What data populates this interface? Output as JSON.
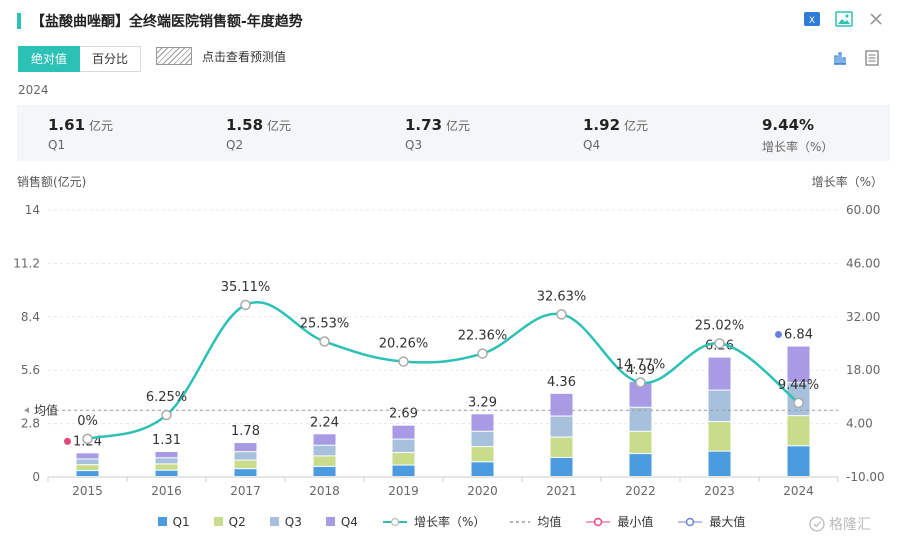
{
  "title": "【盐酸曲唑酮】全终端医院销售额-年度趋势",
  "toggle": {
    "absolute": "绝对值",
    "percent": "百分比"
  },
  "forecast_label": "点击查看预测值",
  "year": "2024",
  "summary": [
    {
      "value": "1.61",
      "unit": "亿元",
      "label": "Q1"
    },
    {
      "value": "1.58",
      "unit": "亿元",
      "label": "Q2"
    },
    {
      "value": "1.73",
      "unit": "亿元",
      "label": "Q3"
    },
    {
      "value": "1.92",
      "unit": "亿元",
      "label": "Q4"
    },
    {
      "value": "9.44%",
      "unit": "",
      "label": "增长率（%）"
    }
  ],
  "watermark": "格隆汇",
  "colors": {
    "accent": "#2cc1b5",
    "q1": "#4a9be0",
    "q2": "#c9dc8c",
    "q3": "#a7c1dc",
    "q4": "#a99ae6",
    "growth": "#2cc1b5",
    "min": "#e8457c",
    "max": "#6a7fe0"
  },
  "chart_data": {
    "type": "bar",
    "stacked": true,
    "categories": [
      "2015",
      "2016",
      "2017",
      "2018",
      "2019",
      "2020",
      "2021",
      "2022",
      "2023",
      "2024"
    ],
    "series": [
      {
        "name": "Q1",
        "values": [
          0.31,
          0.33,
          0.41,
          0.53,
          0.6,
          0.77,
          1.0,
          1.2,
          1.33,
          1.61
        ]
      },
      {
        "name": "Q2",
        "values": [
          0.31,
          0.33,
          0.45,
          0.55,
          0.66,
          0.8,
          1.07,
          1.17,
          1.55,
          1.58
        ]
      },
      {
        "name": "Q3",
        "values": [
          0.3,
          0.32,
          0.44,
          0.56,
          0.7,
          0.8,
          1.1,
          1.26,
          1.65,
          1.73
        ]
      },
      {
        "name": "Q4",
        "values": [
          0.32,
          0.33,
          0.48,
          0.6,
          0.73,
          0.92,
          1.19,
          1.36,
          1.73,
          1.92
        ]
      }
    ],
    "totals": [
      1.24,
      1.31,
      1.78,
      2.24,
      2.69,
      3.29,
      4.36,
      4.99,
      6.26,
      6.84
    ],
    "total_labels": [
      "1.24",
      "1.31",
      "1.78",
      "2.24",
      "2.69",
      "3.29",
      "4.36",
      "4.99",
      "6.26",
      "6.84"
    ],
    "growth": {
      "name": "增长率（%）",
      "values": [
        0,
        6.25,
        35.11,
        25.53,
        20.26,
        22.36,
        32.63,
        14.77,
        25.02,
        9.44
      ],
      "labels": [
        "0%",
        "6.25%",
        "35.11%",
        "25.53%",
        "20.26%",
        "22.36%",
        "32.63%",
        "14.77%",
        "25.02%",
        "9.44%"
      ]
    },
    "mean": {
      "name": "均值",
      "label": "均值"
    },
    "min_label": "最小值",
    "max_label": "最大值",
    "ylabel_left": "销售额(亿元)",
    "ylabel_right": "增长率（%）",
    "ylim_left": [
      0,
      14
    ],
    "yticks_left": [
      "0",
      "2.8",
      "5.6",
      "8.4",
      "11.2",
      "14"
    ],
    "ylim_right": [
      -10,
      60
    ],
    "yticks_right": [
      "-10.00",
      "4.00",
      "18.00",
      "32.00",
      "46.00",
      "60.00"
    ],
    "grid": true,
    "legend_position": "bottom"
  }
}
